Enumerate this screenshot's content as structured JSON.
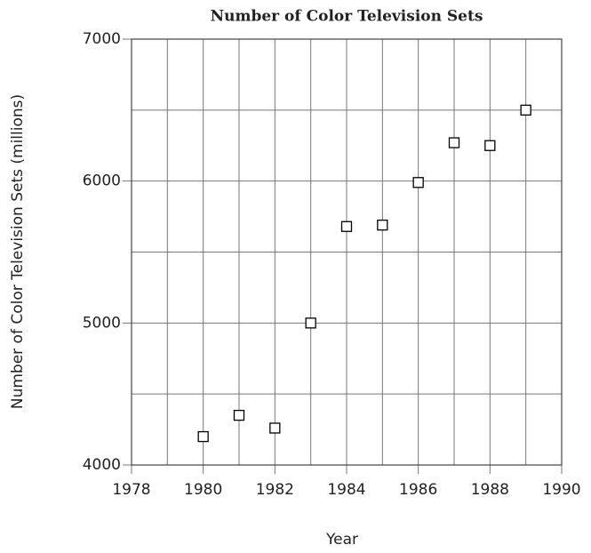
{
  "chart_data": {
    "type": "scatter",
    "title": "Number of Color Television Sets",
    "x_label": "Year",
    "y_label": "Number of Color Television Sets (millions)",
    "x": [
      1980,
      1981,
      1982,
      1983,
      1984,
      1985,
      1986,
      1987,
      1988,
      1989
    ],
    "values": [
      4200,
      4350,
      4260,
      5000,
      5680,
      5690,
      5990,
      6270,
      6250,
      6500
    ],
    "color": "#000000",
    "xlim": [
      1978,
      1990
    ],
    "xticks": [
      1978,
      1980,
      1982,
      1984,
      1986,
      1988,
      1990
    ],
    "x_minor_ticks": [
      1979,
      1981,
      1983,
      1985,
      1987,
      1989
    ],
    "ylim": [
      4000,
      7000
    ],
    "yticks": [
      4000,
      5000,
      6000,
      7000
    ],
    "y_minor_ticks": [
      4500,
      5500,
      6500
    ],
    "grid": true
  }
}
